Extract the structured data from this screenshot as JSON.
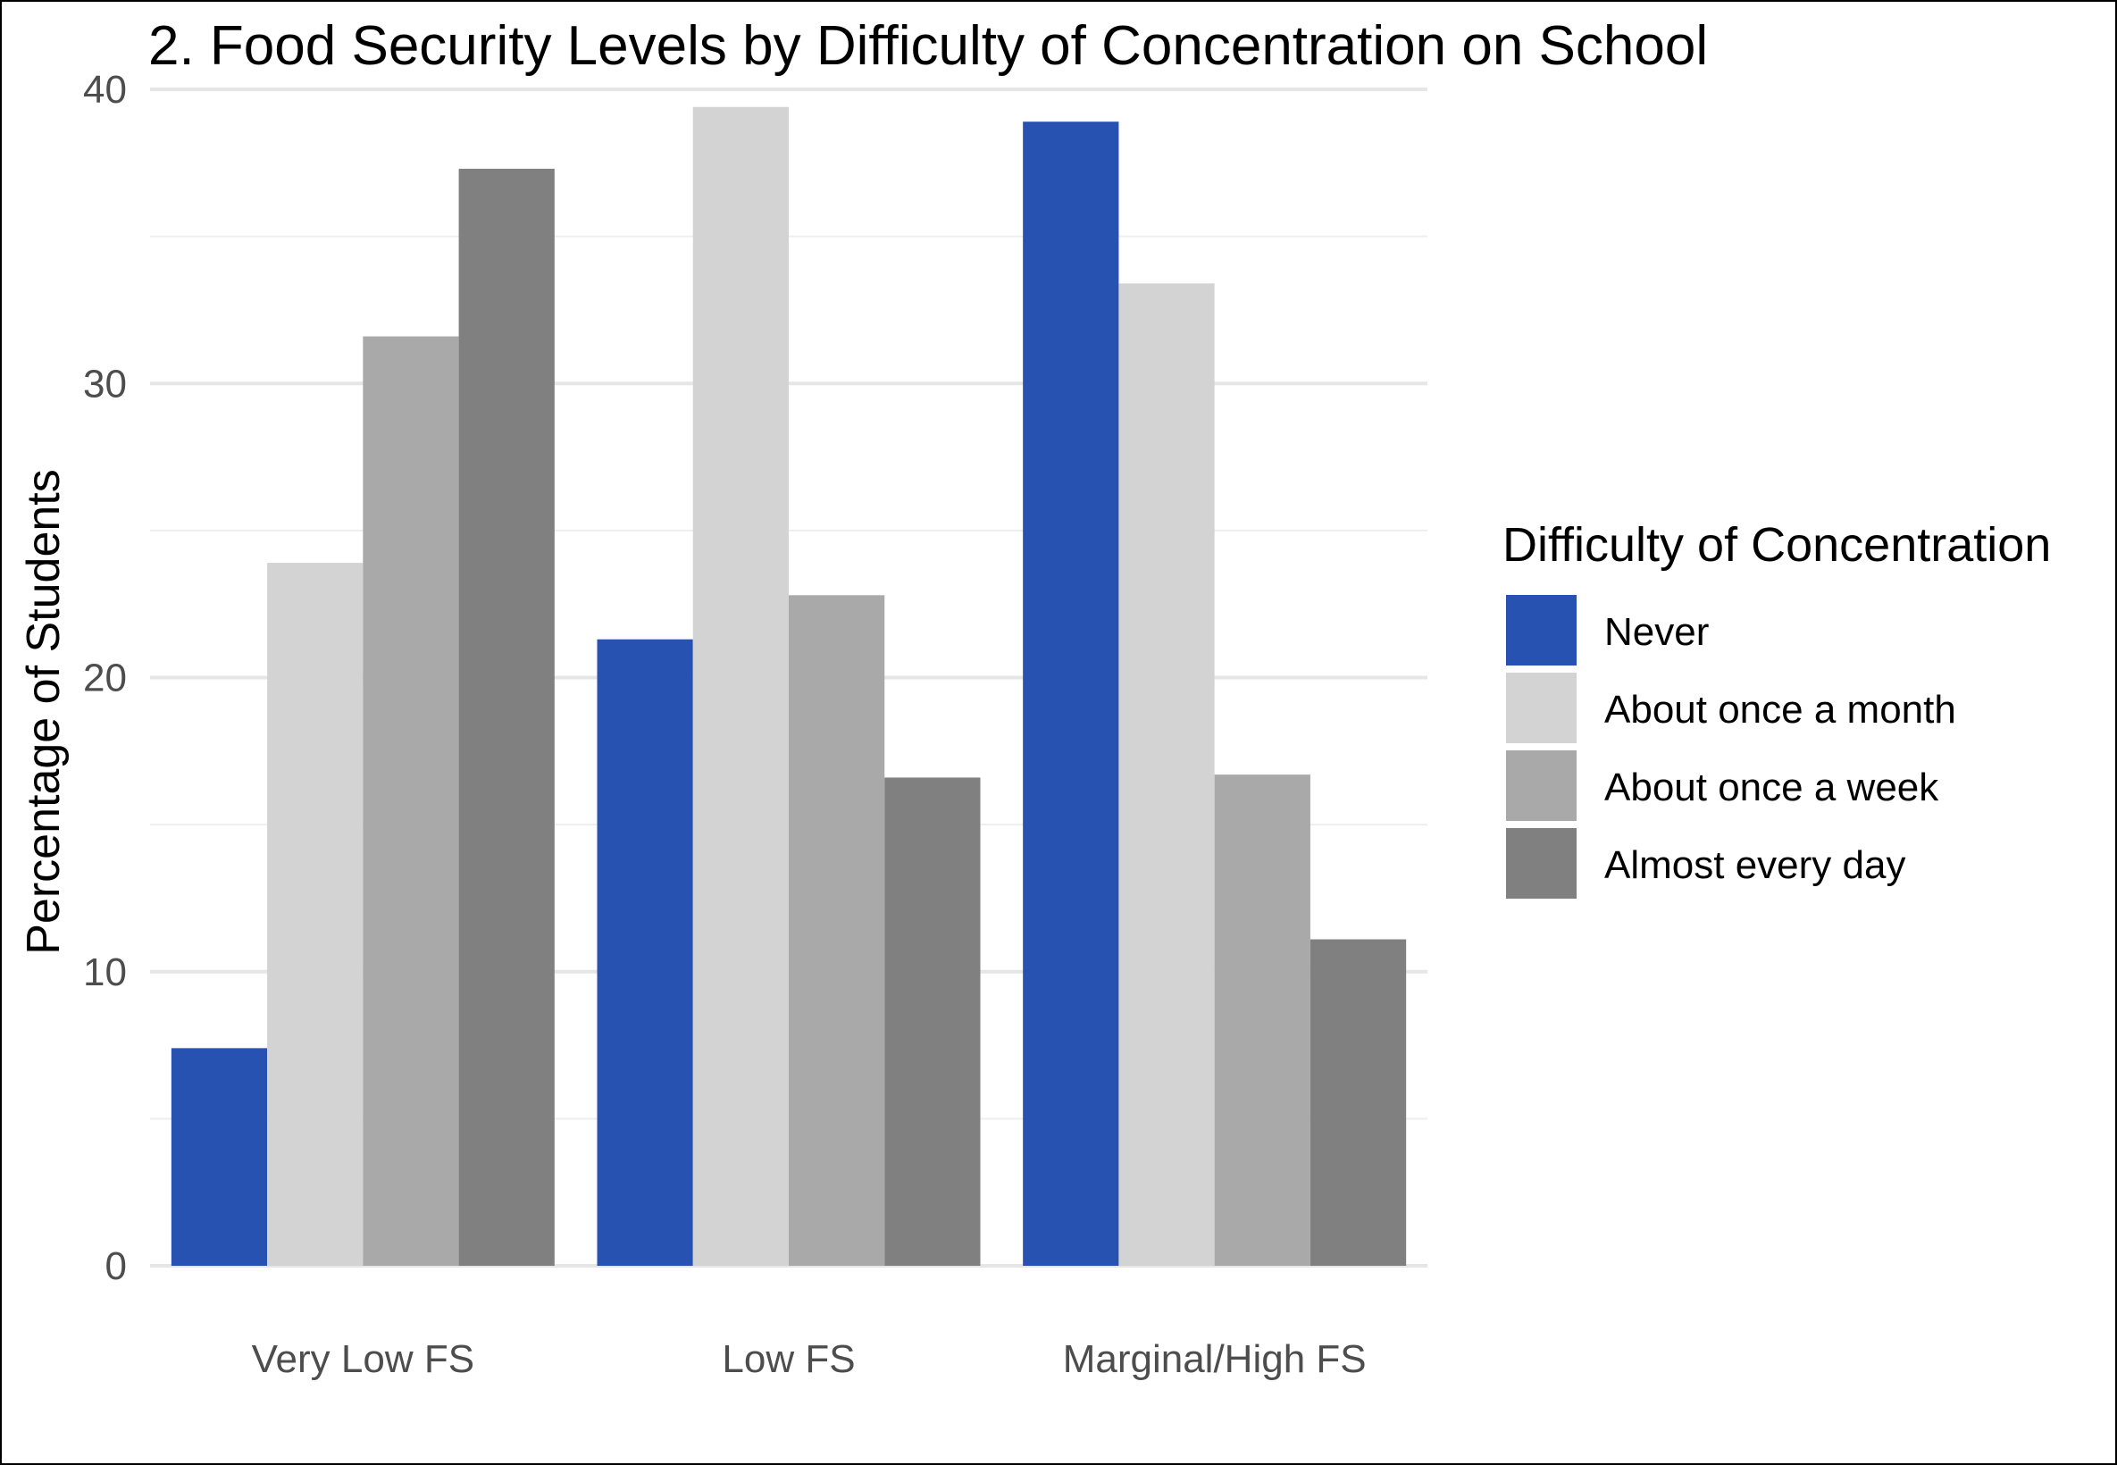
{
  "chart_data": {
    "type": "bar",
    "title": "2. Food Security Levels by Difficulty of Concentration on School",
    "xlabel": "",
    "ylabel": "Percentage of Students",
    "ylim": [
      0,
      40
    ],
    "y_ticks": [
      0,
      10,
      20,
      30,
      40
    ],
    "y_tick_labels": [
      "0",
      "10",
      "20",
      "30",
      "40"
    ],
    "categories": [
      "Very Low FS",
      "Low FS",
      "Marginal/High FS"
    ],
    "legend": {
      "title": "Difficulty of Concentration",
      "placement": "right"
    },
    "grid": true,
    "series": [
      {
        "name": "Never",
        "color": "#2852b2",
        "values": [
          7.4,
          21.3,
          38.9
        ]
      },
      {
        "name": "About once a month",
        "color": "#d3d3d3",
        "values": [
          23.9,
          39.4,
          33.4
        ]
      },
      {
        "name": "About once a week",
        "color": "#a9a9a9",
        "values": [
          31.6,
          22.8,
          16.7
        ]
      },
      {
        "name": "Almost every day",
        "color": "#808080",
        "values": [
          37.3,
          16.6,
          11.1
        ]
      }
    ]
  }
}
